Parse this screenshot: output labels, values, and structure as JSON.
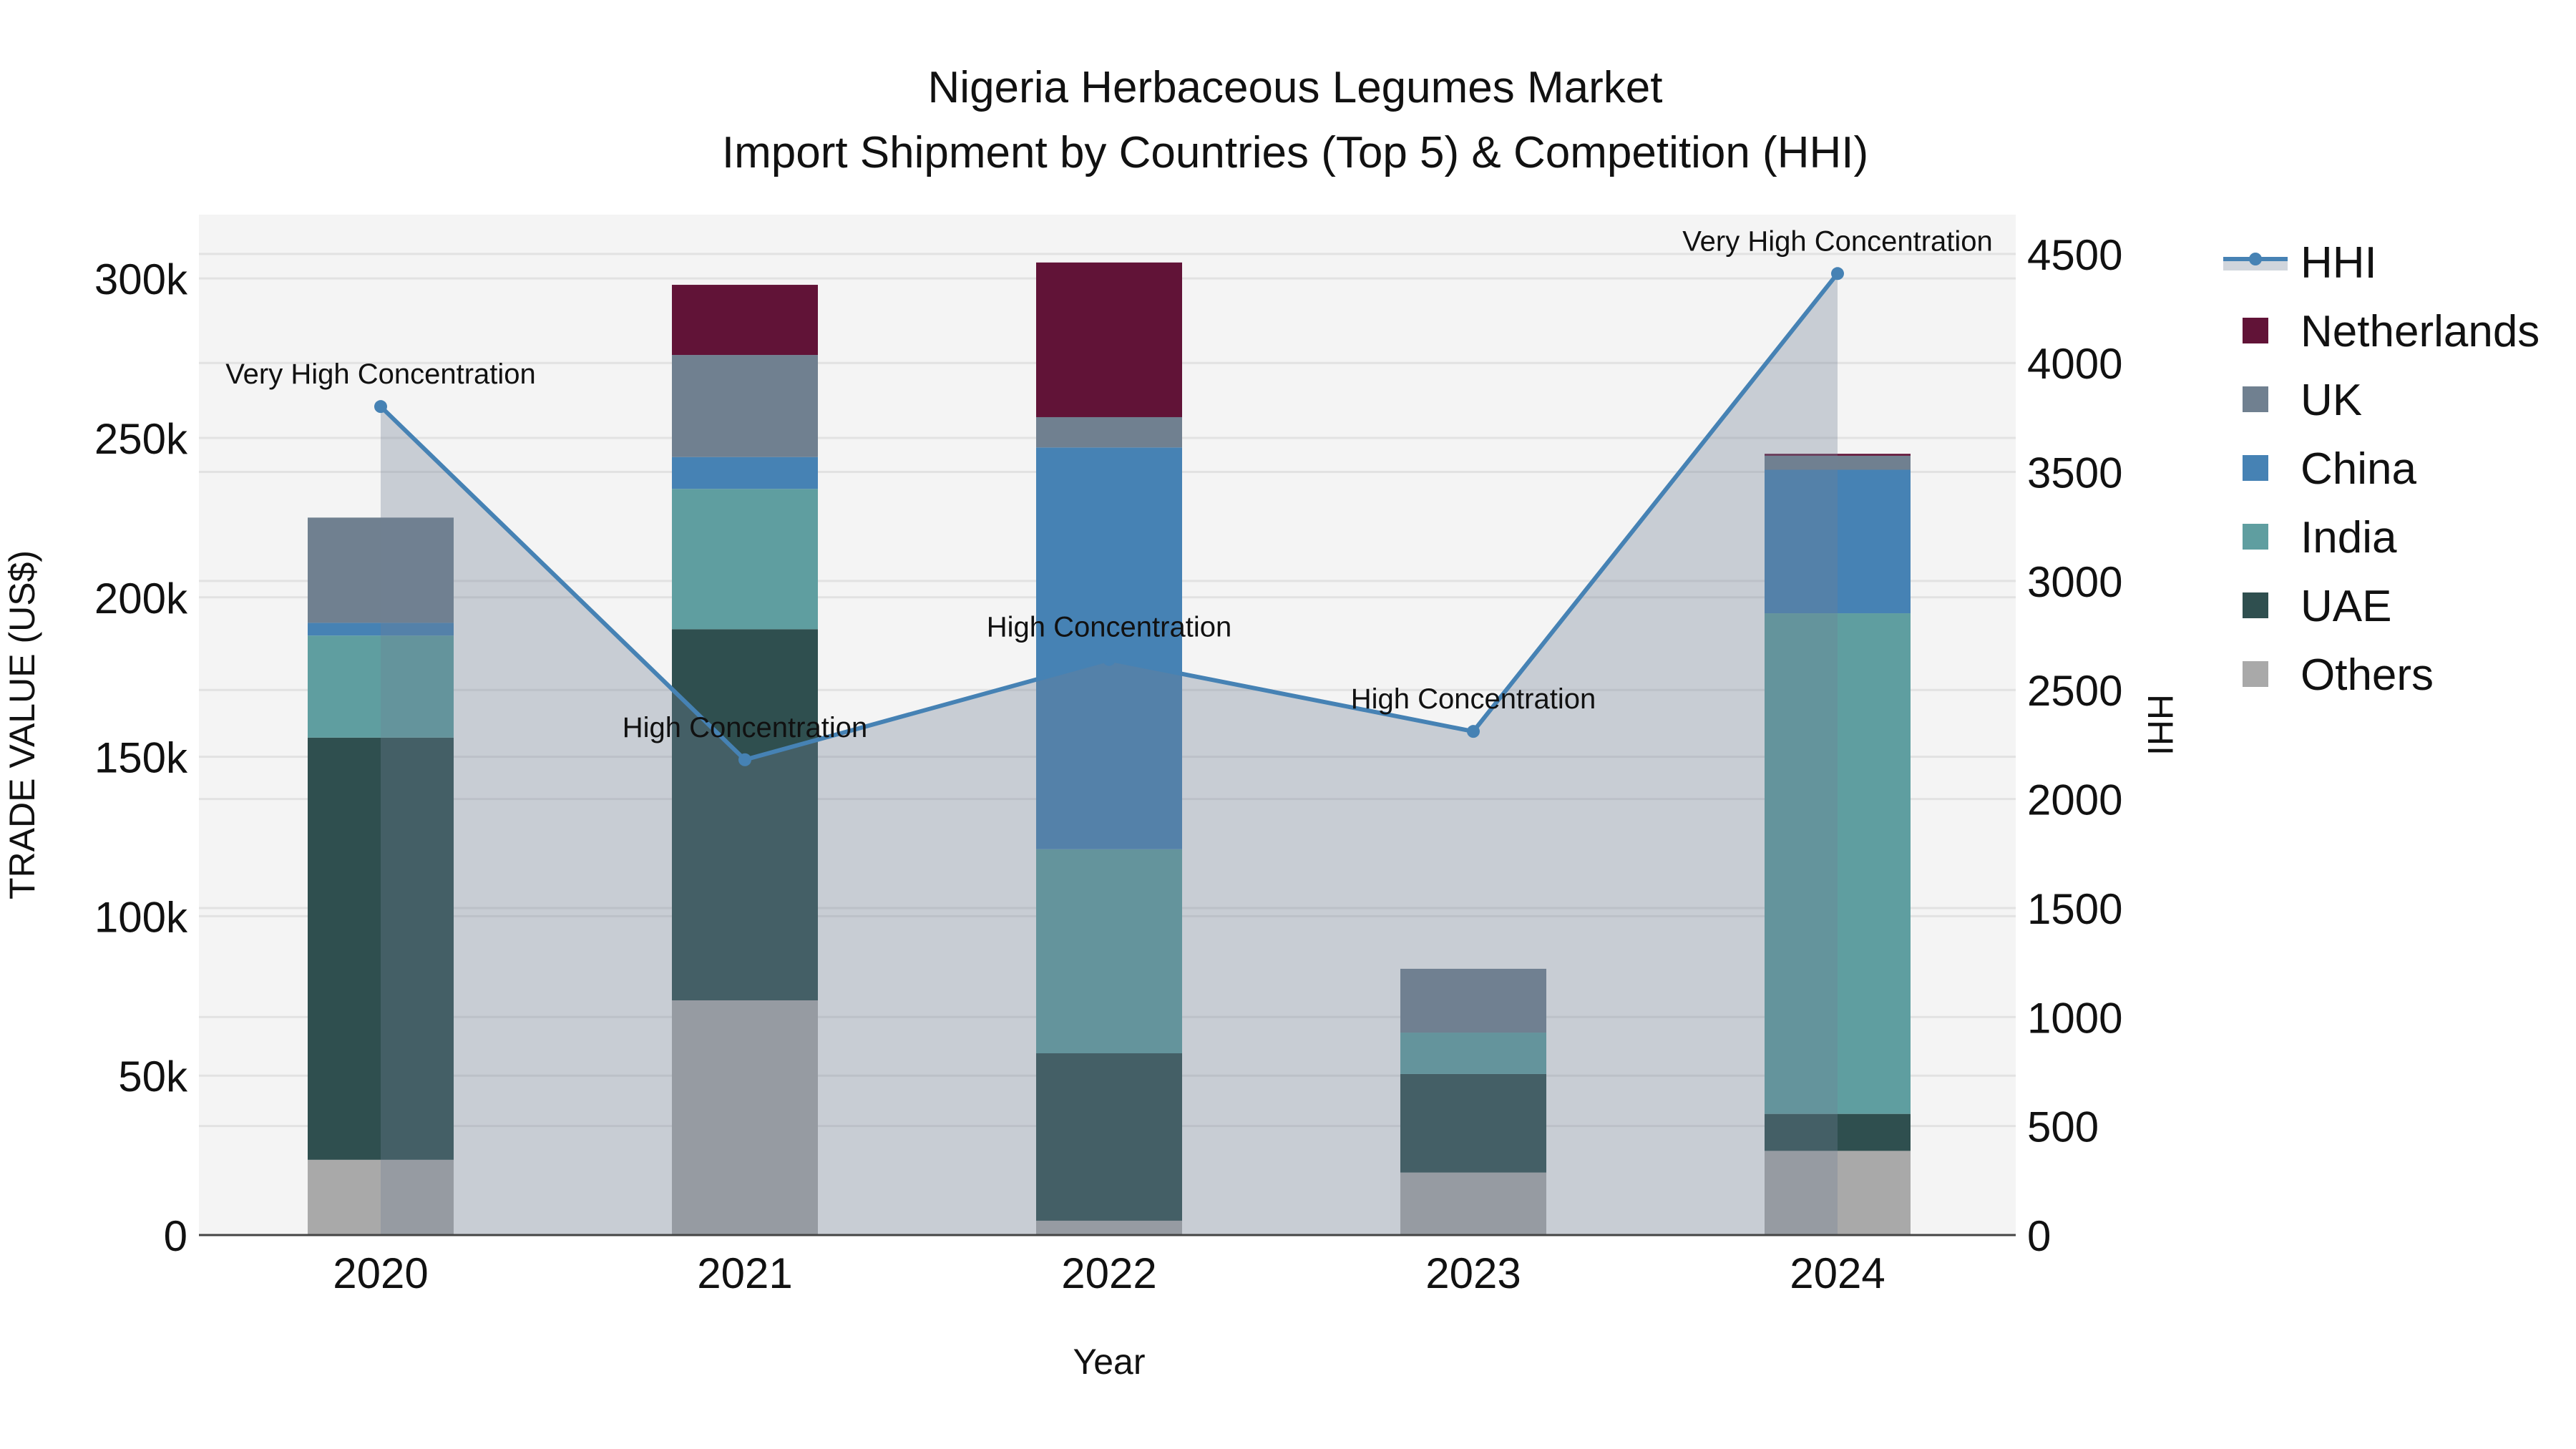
{
  "chart": {
    "title_line1": "Nigeria Herbaceous Legumes Market",
    "title_line2": "Import Shipment by Countries (Top 5) & Competition (HHI)",
    "xlabel": "Year",
    "ylabel_left": "TRADE VALUE (US$)",
    "ylabel_right": "HHI",
    "colors": {
      "plot_bg": "#f4f4f4",
      "grid": "#e2e2e2",
      "axis_line": "#444444",
      "hhi_line": "#4682b4",
      "hhi_fill": "rgba(112,128,150,0.33)"
    }
  },
  "chart_data": {
    "type": "bar",
    "subtype": "stacked bar + line (secondary axis) with area fill",
    "title": "Nigeria Herbaceous Legumes Market — Import Shipment by Countries (Top 5) & Competition (HHI)",
    "xlabel": "Year",
    "ylabel": "TRADE VALUE (US$)",
    "y2label": "HHI",
    "categories": [
      "2020",
      "2021",
      "2022",
      "2023",
      "2024"
    ],
    "ylim": [
      0,
      320000
    ],
    "y2lim": [
      0,
      4680
    ],
    "yticks": [
      {
        "value": 0,
        "label": "0"
      },
      {
        "value": 50000,
        "label": "50k"
      },
      {
        "value": 100000,
        "label": "100k"
      },
      {
        "value": 150000,
        "label": "150k"
      },
      {
        "value": 200000,
        "label": "200k"
      },
      {
        "value": 250000,
        "label": "250k"
      },
      {
        "value": 300000,
        "label": "300k"
      }
    ],
    "y2ticks": [
      {
        "value": 0,
        "label": "0"
      },
      {
        "value": 500,
        "label": "500"
      },
      {
        "value": 1000,
        "label": "1000"
      },
      {
        "value": 1500,
        "label": "1500"
      },
      {
        "value": 2000,
        "label": "2000"
      },
      {
        "value": 2500,
        "label": "2500"
      },
      {
        "value": 3000,
        "label": "3000"
      },
      {
        "value": 3500,
        "label": "3500"
      },
      {
        "value": 4000,
        "label": "4000"
      },
      {
        "value": 4500,
        "label": "4500"
      }
    ],
    "grid": true,
    "legend_position": "right",
    "series": [
      {
        "name": "Others",
        "color": "#a9a9a9",
        "values": [
          23600,
          73600,
          4500,
          19600,
          26400
        ]
      },
      {
        "name": "UAE",
        "color": "#2f4f4f",
        "values": [
          132400,
          116400,
          52500,
          30900,
          11600
        ]
      },
      {
        "name": "India",
        "color": "#5f9ea0",
        "values": [
          32000,
          44000,
          64000,
          13000,
          157000
        ]
      },
      {
        "name": "China",
        "color": "#4682b4",
        "values": [
          4000,
          10000,
          126000,
          0,
          45000
        ]
      },
      {
        "name": "UK",
        "color": "#708090",
        "values": [
          33000,
          32000,
          9500,
          20000,
          4400
        ]
      },
      {
        "name": "Netherlands",
        "color": "#611337",
        "values": [
          0,
          22000,
          48500,
          0,
          600
        ]
      }
    ],
    "line_series": {
      "name": "HHI",
      "axis": "y2",
      "color": "#4682b4",
      "values": [
        3800,
        2180,
        2640,
        2310,
        4410
      ]
    },
    "annotations": [
      {
        "category": "2020",
        "text": "Very High Concentration"
      },
      {
        "category": "2021",
        "text": "High Concentration"
      },
      {
        "category": "2022",
        "text": "High Concentration"
      },
      {
        "category": "2023",
        "text": "High Concentration"
      },
      {
        "category": "2024",
        "text": "Very High Concentration"
      }
    ],
    "legend": [
      "HHI",
      "Netherlands",
      "UK",
      "China",
      "India",
      "UAE",
      "Others"
    ]
  }
}
